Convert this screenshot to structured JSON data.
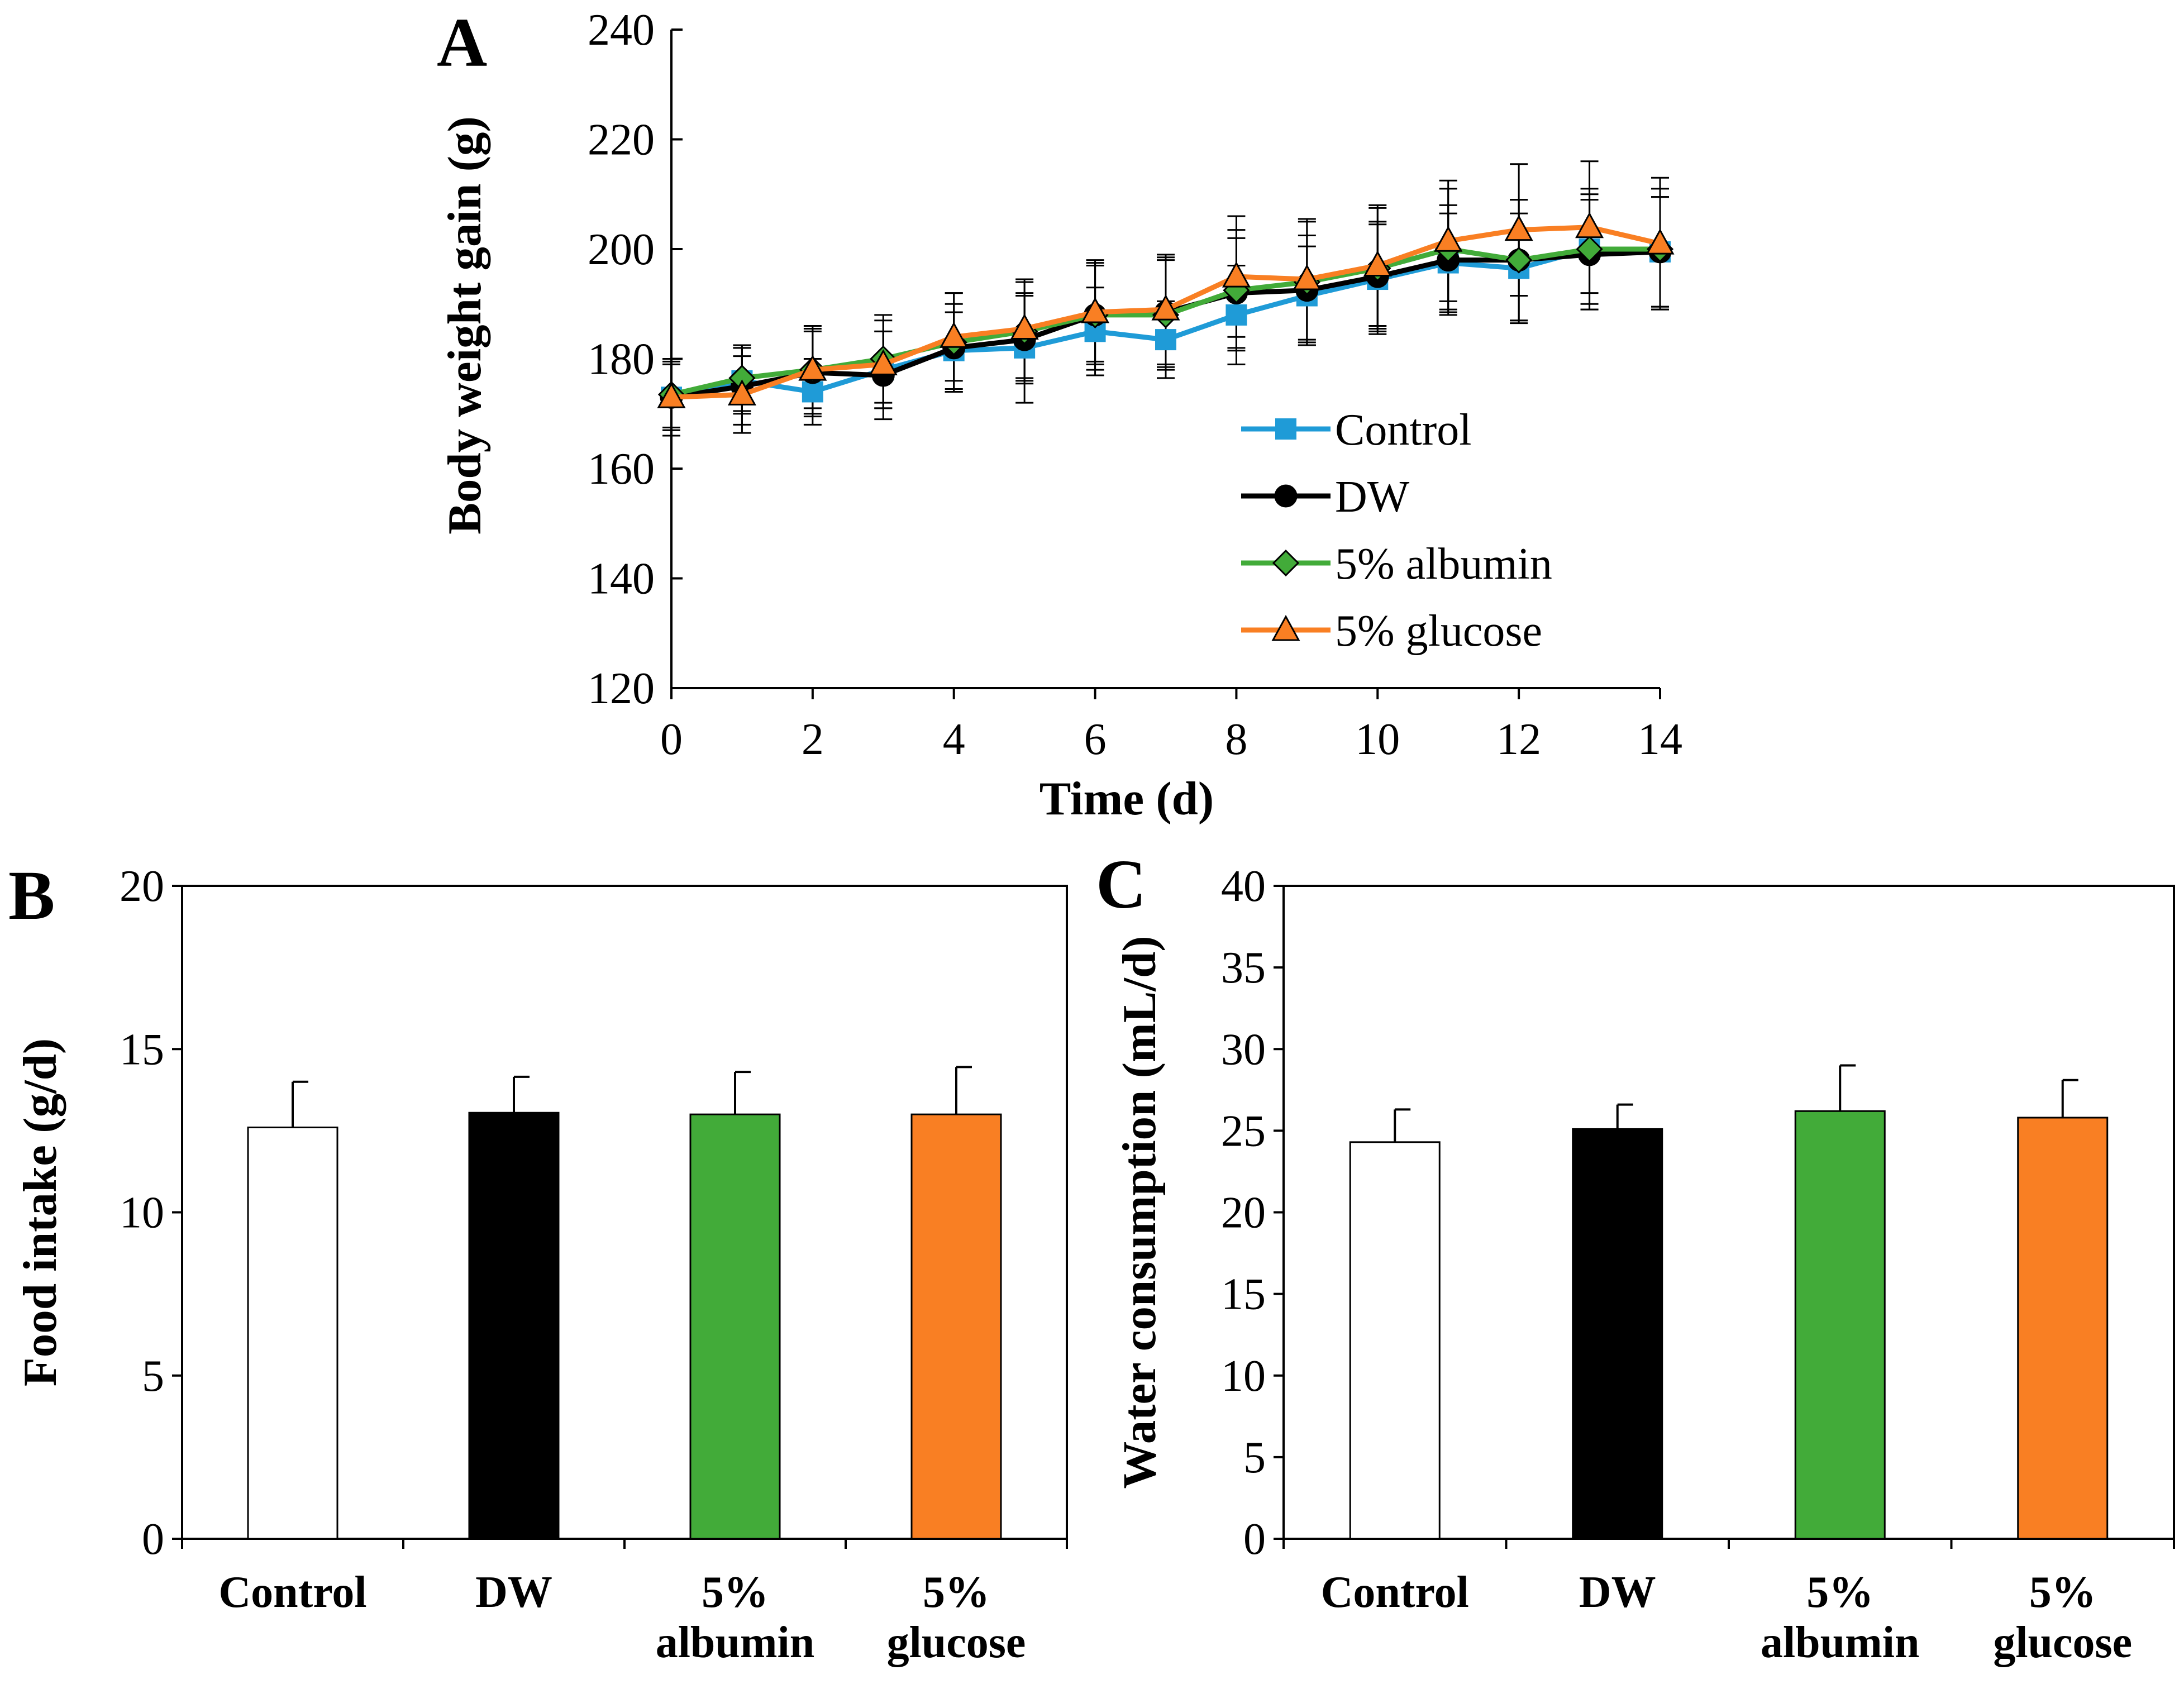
{
  "colors": {
    "control": "#1f9bd7",
    "dw": "#000000",
    "albumin": "#42ab39",
    "glucose": "#f97f23",
    "control_bar": "#ffffff"
  },
  "chart_data": [
    {
      "panel": "A",
      "type": "line",
      "xlabel": "Time (d)",
      "ylabel": "Body weight gain (g)",
      "xlim": [
        0,
        14
      ],
      "ylim": [
        120,
        240
      ],
      "x_ticks": [
        "0",
        "2",
        "4",
        "6",
        "8",
        "10",
        "12",
        "14"
      ],
      "y_ticks": [
        "120",
        "140",
        "160",
        "180",
        "200",
        "220",
        "240"
      ],
      "legend_position": "bottom-right",
      "x": [
        0,
        1,
        2,
        3,
        4,
        5,
        6,
        7,
        8,
        9,
        10,
        11,
        12,
        13,
        14
      ],
      "series": [
        {
          "name": "Control",
          "key": "control",
          "marker": "square",
          "values": [
            173,
            176,
            174,
            178,
            181.5,
            182,
            185,
            183.5,
            188,
            191.5,
            194.5,
            197.5,
            196.5,
            200,
            199.5
          ],
          "errors": [
            7,
            6,
            6,
            7,
            7,
            10,
            8,
            7,
            9,
            9,
            10,
            9,
            10,
            10,
            10
          ]
        },
        {
          "name": "DW",
          "key": "dw",
          "marker": "circle",
          "values": [
            173,
            175,
            177.5,
            177,
            182,
            183.5,
            188,
            188.5,
            192,
            192.5,
            195,
            198,
            198,
            199,
            199.5
          ],
          "errors": [
            6,
            7,
            8,
            8,
            8,
            8,
            10,
            10,
            10,
            10,
            10,
            10,
            11,
            10,
            10
          ]
        },
        {
          "name": "5% albumin",
          "key": "albumin",
          "marker": "diamond",
          "values": [
            173.5,
            176.5,
            178,
            180,
            183,
            185,
            188,
            188,
            192.5,
            194,
            196.5,
            200,
            198,
            200,
            200
          ],
          "errors": [
            6,
            6,
            8,
            8,
            9,
            9,
            9,
            10,
            11,
            11,
            11,
            11,
            11,
            11,
            11
          ]
        },
        {
          "name": "5% glucose",
          "key": "glucose",
          "marker": "triangle",
          "values": [
            173,
            173.5,
            178,
            179,
            184,
            185.5,
            188.5,
            189,
            195,
            194.5,
            197,
            201.5,
            203.5,
            204,
            201
          ],
          "errors": [
            6,
            7,
            7,
            8,
            8,
            9,
            9,
            10,
            11,
            11,
            11,
            11,
            12,
            12,
            12
          ]
        }
      ]
    },
    {
      "panel": "B",
      "type": "bar",
      "categories": [
        [
          "Control"
        ],
        [
          "DW"
        ],
        [
          "5%",
          "albumin"
        ],
        [
          "5%",
          "glucose"
        ]
      ],
      "category_keys": [
        "control_bar",
        "dw",
        "albumin",
        "glucose"
      ],
      "values": [
        12.6,
        13.05,
        13.0,
        13.0
      ],
      "errors": [
        1.4,
        1.1,
        1.3,
        1.45
      ],
      "ylabel": "Food intake (g/d)",
      "xlabel": "",
      "ylim": [
        0,
        20
      ],
      "y_ticks": [
        "0",
        "5",
        "10",
        "15",
        "20"
      ]
    },
    {
      "panel": "C",
      "type": "bar",
      "categories": [
        [
          "Control"
        ],
        [
          "DW"
        ],
        [
          "5%",
          "albumin"
        ],
        [
          "5%",
          "glucose"
        ]
      ],
      "category_keys": [
        "control_bar",
        "dw",
        "albumin",
        "glucose"
      ],
      "values": [
        24.3,
        25.1,
        26.2,
        25.8
      ],
      "errors": [
        2.0,
        1.5,
        2.8,
        2.3
      ],
      "ylabel": "Water consumption (mL/d)",
      "xlabel": "",
      "ylim": [
        0,
        40
      ],
      "y_ticks": [
        "0",
        "5",
        "10",
        "15",
        "20",
        "25",
        "30",
        "35",
        "40"
      ]
    }
  ]
}
